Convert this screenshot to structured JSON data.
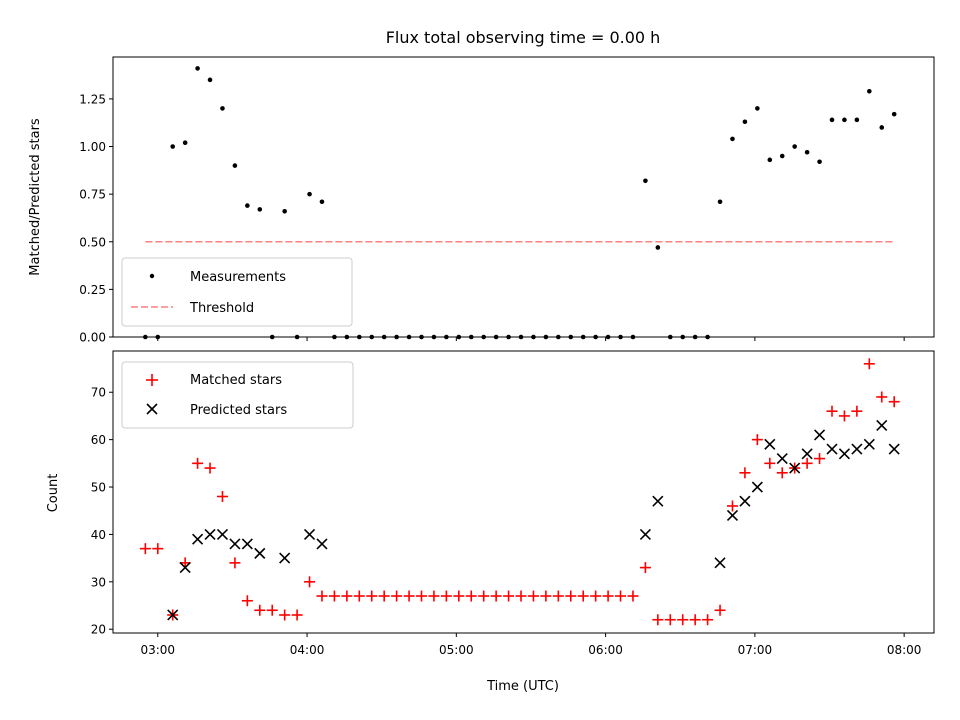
{
  "chart_data": [
    {
      "type": "scatter",
      "title": "Flux total observing time = 0.00 h",
      "xlabel": "",
      "ylabel": "Matched/Predicted stars",
      "xlim": [
        "02:42",
        "08:12"
      ],
      "ylim": [
        0,
        1.47
      ],
      "yticks": [
        "0.00",
        "0.25",
        "0.50",
        "0.75",
        "1.00",
        "1.25"
      ],
      "ytick_values": [
        0,
        0.25,
        0.5,
        0.75,
        1.0,
        1.25
      ],
      "xticks": [
        "03:00",
        "04:00",
        "05:00",
        "06:00",
        "07:00",
        "08:00"
      ],
      "legend_position": "lower-left",
      "series": [
        {
          "name": "Measurements",
          "marker": "dot",
          "color": "#000000",
          "points": [
            [
              "02:55",
              0.0
            ],
            [
              "03:00",
              0.0
            ],
            [
              "03:06",
              1.0
            ],
            [
              "03:11",
              1.02
            ],
            [
              "03:16",
              1.41
            ],
            [
              "03:21",
              1.35
            ],
            [
              "03:26",
              1.2
            ],
            [
              "03:31",
              0.9
            ],
            [
              "03:36",
              0.69
            ],
            [
              "03:41",
              0.67
            ],
            [
              "03:46",
              0.0
            ],
            [
              "03:51",
              0.66
            ],
            [
              "03:56",
              0.0
            ],
            [
              "04:01",
              0.75
            ],
            [
              "04:06",
              0.71
            ],
            [
              "04:11",
              0.0
            ],
            [
              "04:16",
              0.0
            ],
            [
              "04:21",
              0.0
            ],
            [
              "04:26",
              0.0
            ],
            [
              "04:31",
              0.0
            ],
            [
              "04:36",
              0.0
            ],
            [
              "04:41",
              0.0
            ],
            [
              "04:46",
              0.0
            ],
            [
              "04:51",
              0.0
            ],
            [
              "04:56",
              0.0
            ],
            [
              "05:01",
              0.0
            ],
            [
              "05:06",
              0.0
            ],
            [
              "05:11",
              0.0
            ],
            [
              "05:16",
              0.0
            ],
            [
              "05:21",
              0.0
            ],
            [
              "05:26",
              0.0
            ],
            [
              "05:31",
              0.0
            ],
            [
              "05:36",
              0.0
            ],
            [
              "05:41",
              0.0
            ],
            [
              "05:46",
              0.0
            ],
            [
              "05:51",
              0.0
            ],
            [
              "05:56",
              0.0
            ],
            [
              "06:01",
              0.0
            ],
            [
              "06:06",
              0.0
            ],
            [
              "06:11",
              0.0
            ],
            [
              "06:16",
              0.82
            ],
            [
              "06:21",
              0.47
            ],
            [
              "06:26",
              0.0
            ],
            [
              "06:31",
              0.0
            ],
            [
              "06:36",
              0.0
            ],
            [
              "06:41",
              0.0
            ],
            [
              "06:46",
              0.71
            ],
            [
              "06:51",
              1.04
            ],
            [
              "06:56",
              1.13
            ],
            [
              "07:01",
              1.2
            ],
            [
              "07:06",
              0.93
            ],
            [
              "07:11",
              0.95
            ],
            [
              "07:16",
              1.0
            ],
            [
              "07:21",
              0.97
            ],
            [
              "07:26",
              0.92
            ],
            [
              "07:31",
              1.14
            ],
            [
              "07:36",
              1.14
            ],
            [
              "07:41",
              1.14
            ],
            [
              "07:46",
              1.29
            ],
            [
              "07:51",
              1.1
            ],
            [
              "07:56",
              1.17
            ]
          ]
        },
        {
          "name": "Threshold",
          "marker": "dashed-line",
          "color": "#ff8080",
          "points": [
            [
              "02:55",
              0.5
            ],
            [
              "07:56",
              0.5
            ]
          ]
        }
      ]
    },
    {
      "type": "scatter",
      "title": "",
      "xlabel": "Time (UTC)",
      "ylabel": "Count",
      "xlim": [
        "02:42",
        "08:12"
      ],
      "ylim": [
        19.2,
        78.7
      ],
      "yticks": [
        "20",
        "30",
        "40",
        "50",
        "60",
        "70"
      ],
      "ytick_values": [
        20,
        30,
        40,
        50,
        60,
        70
      ],
      "xticks": [
        "03:00",
        "04:00",
        "05:00",
        "06:00",
        "07:00",
        "08:00"
      ],
      "legend_position": "upper-left",
      "series": [
        {
          "name": "Matched stars",
          "marker": "plus",
          "color": "#ff0000",
          "points": [
            [
              "02:55",
              37
            ],
            [
              "03:00",
              37
            ],
            [
              "03:06",
              23
            ],
            [
              "03:11",
              34
            ],
            [
              "03:16",
              55
            ],
            [
              "03:21",
              54
            ],
            [
              "03:26",
              48
            ],
            [
              "03:31",
              34
            ],
            [
              "03:36",
              26
            ],
            [
              "03:41",
              24
            ],
            [
              "03:46",
              24
            ],
            [
              "03:51",
              23
            ],
            [
              "03:56",
              23
            ],
            [
              "04:01",
              30
            ],
            [
              "04:06",
              27
            ],
            [
              "04:11",
              27
            ],
            [
              "04:16",
              27
            ],
            [
              "04:21",
              27
            ],
            [
              "04:26",
              27
            ],
            [
              "04:31",
              27
            ],
            [
              "04:36",
              27
            ],
            [
              "04:41",
              27
            ],
            [
              "04:46",
              27
            ],
            [
              "04:51",
              27
            ],
            [
              "04:56",
              27
            ],
            [
              "05:01",
              27
            ],
            [
              "05:06",
              27
            ],
            [
              "05:11",
              27
            ],
            [
              "05:16",
              27
            ],
            [
              "05:21",
              27
            ],
            [
              "05:26",
              27
            ],
            [
              "05:31",
              27
            ],
            [
              "05:36",
              27
            ],
            [
              "05:41",
              27
            ],
            [
              "05:46",
              27
            ],
            [
              "05:51",
              27
            ],
            [
              "05:56",
              27
            ],
            [
              "06:01",
              27
            ],
            [
              "06:06",
              27
            ],
            [
              "06:11",
              27
            ],
            [
              "06:16",
              33
            ],
            [
              "06:21",
              22
            ],
            [
              "06:26",
              22
            ],
            [
              "06:31",
              22
            ],
            [
              "06:36",
              22
            ],
            [
              "06:41",
              22
            ],
            [
              "06:46",
              24
            ],
            [
              "06:51",
              46
            ],
            [
              "06:56",
              53
            ],
            [
              "07:01",
              60
            ],
            [
              "07:06",
              55
            ],
            [
              "07:11",
              53
            ],
            [
              "07:16",
              54
            ],
            [
              "07:21",
              55
            ],
            [
              "07:26",
              56
            ],
            [
              "07:31",
              66
            ],
            [
              "07:36",
              65
            ],
            [
              "07:41",
              66
            ],
            [
              "07:46",
              76
            ],
            [
              "07:51",
              69
            ],
            [
              "07:56",
              68
            ]
          ]
        },
        {
          "name": "Predicted stars",
          "marker": "x",
          "color": "#000000",
          "points": [
            [
              "03:06",
              23
            ],
            [
              "03:11",
              33
            ],
            [
              "03:16",
              39
            ],
            [
              "03:21",
              40
            ],
            [
              "03:26",
              40
            ],
            [
              "03:31",
              38
            ],
            [
              "03:36",
              38
            ],
            [
              "03:41",
              36
            ],
            [
              "03:51",
              35
            ],
            [
              "04:01",
              40
            ],
            [
              "04:06",
              38
            ],
            [
              "06:16",
              40
            ],
            [
              "06:21",
              47
            ],
            [
              "06:46",
              34
            ],
            [
              "06:51",
              44
            ],
            [
              "06:56",
              47
            ],
            [
              "07:01",
              50
            ],
            [
              "07:06",
              59
            ],
            [
              "07:11",
              56
            ],
            [
              "07:16",
              54
            ],
            [
              "07:21",
              57
            ],
            [
              "07:26",
              61
            ],
            [
              "07:31",
              58
            ],
            [
              "07:36",
              57
            ],
            [
              "07:41",
              58
            ],
            [
              "07:46",
              59
            ],
            [
              "07:51",
              63
            ],
            [
              "07:56",
              58
            ]
          ]
        }
      ]
    }
  ]
}
